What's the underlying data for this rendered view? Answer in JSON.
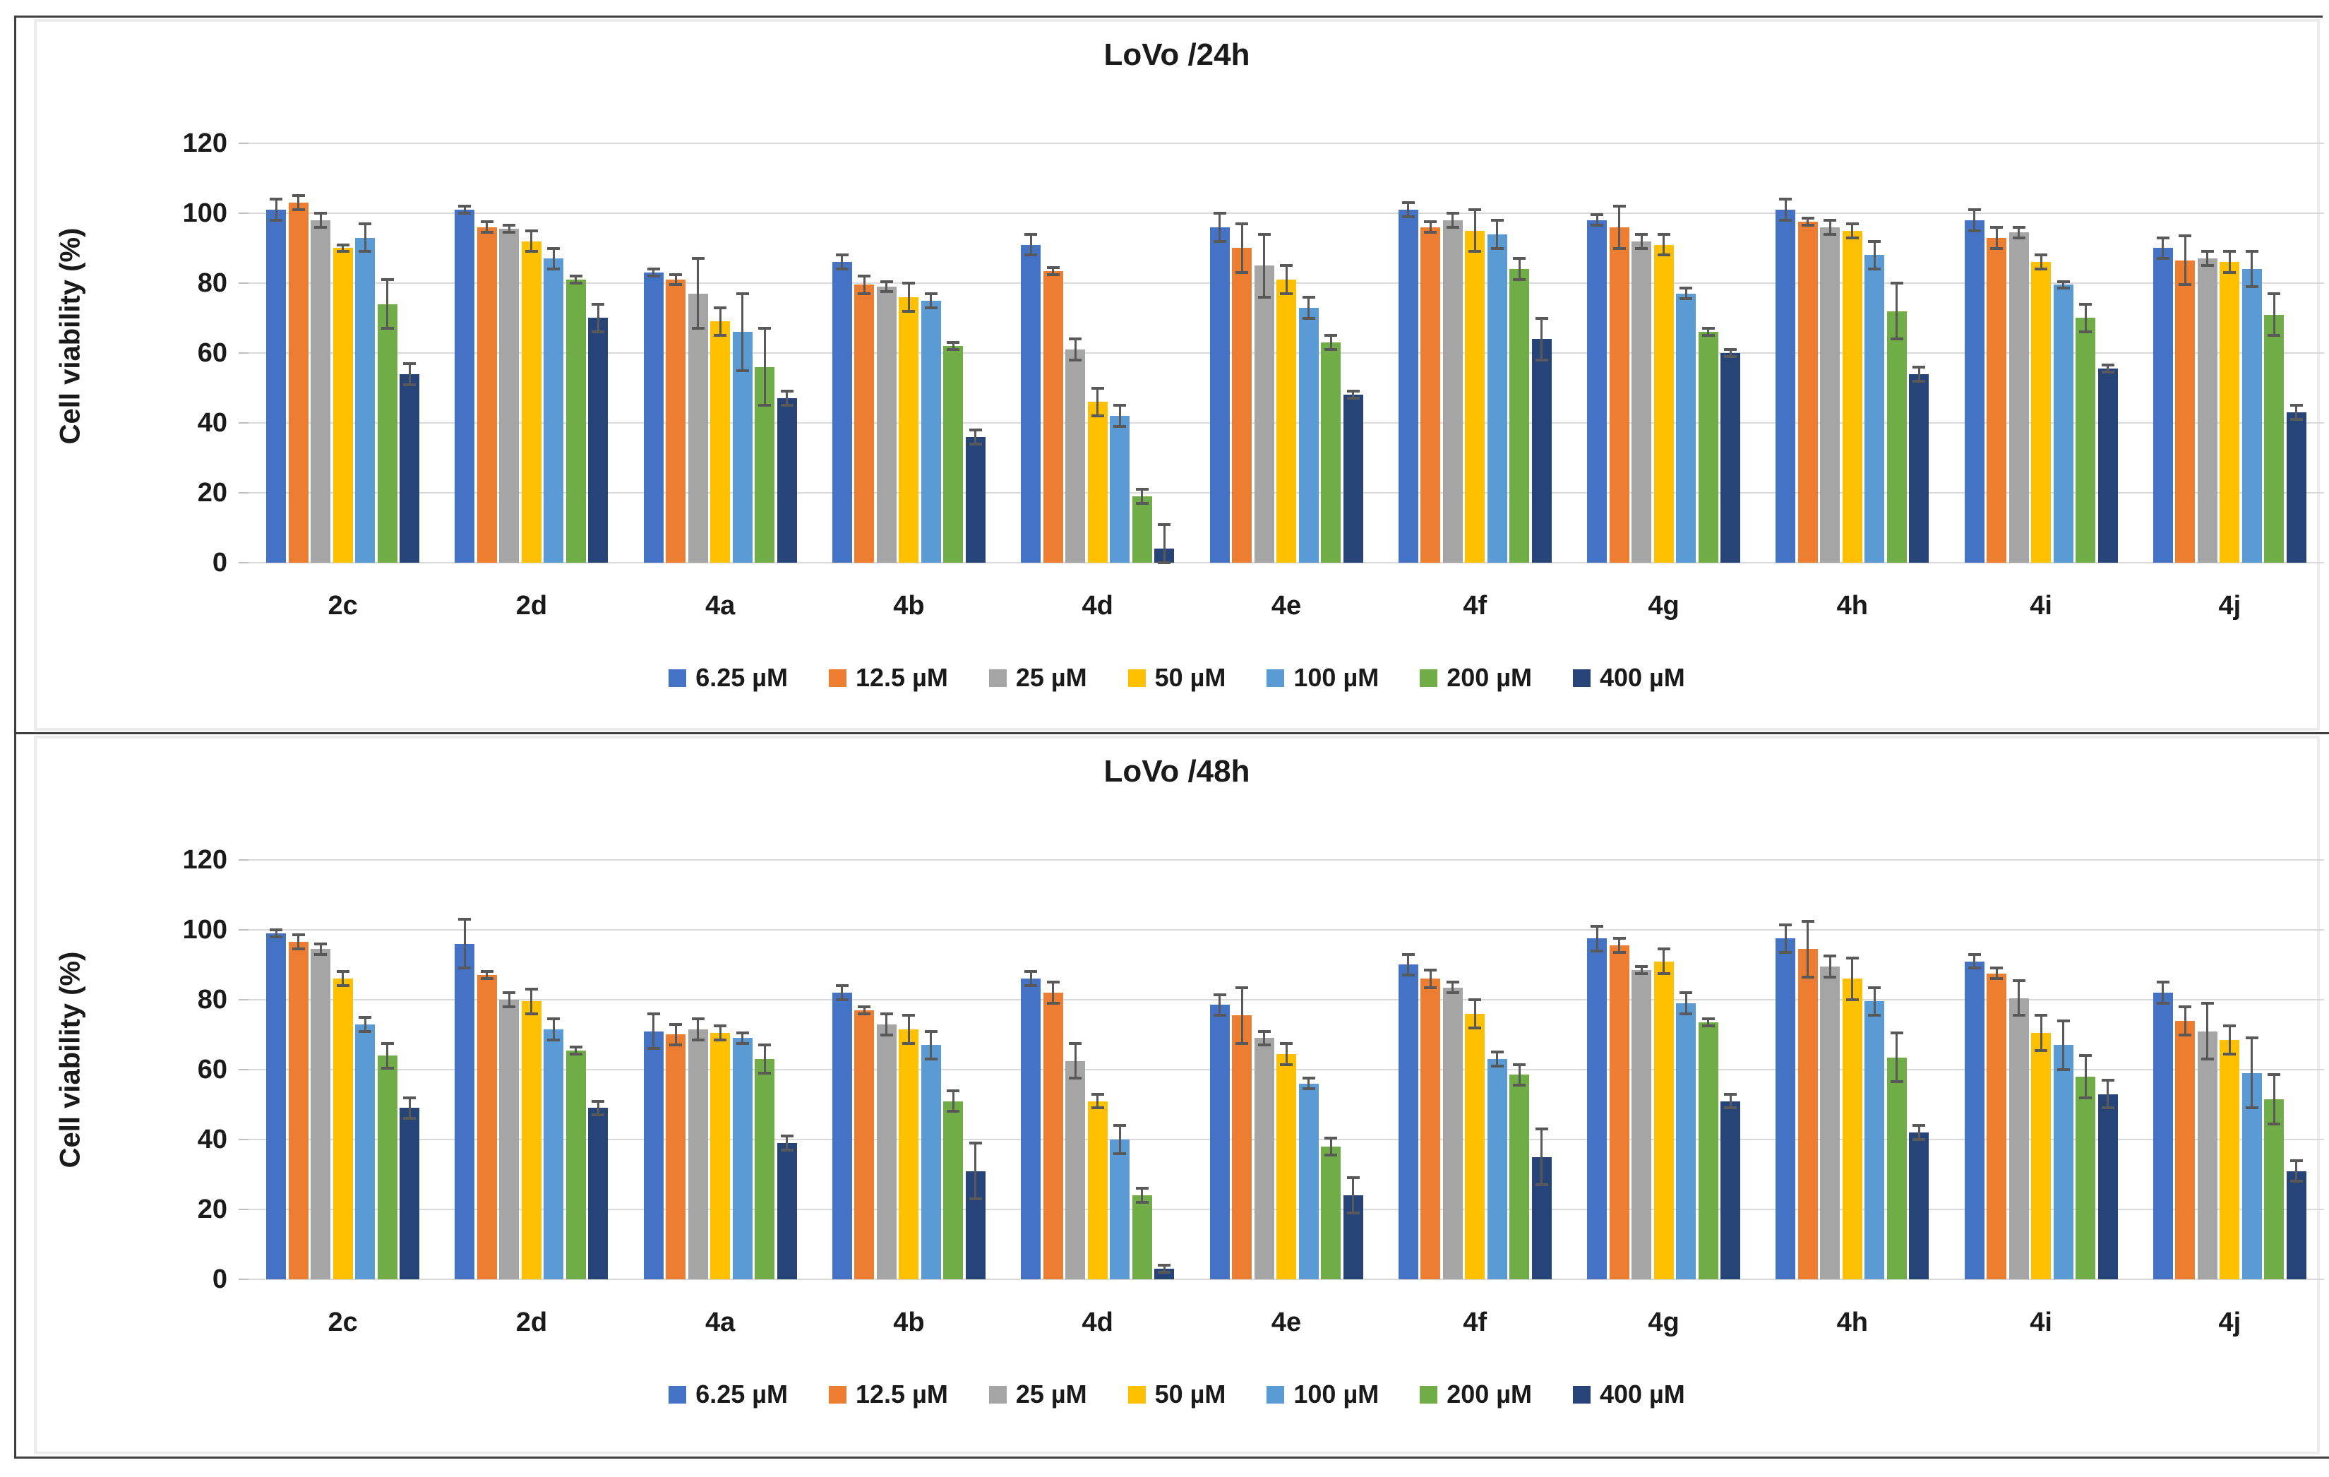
{
  "figure": {
    "background": "#ffffff",
    "outer_border_color": "#3f3f3f",
    "panel_border_color": "#ececec",
    "gridline_color": "#d9d9d9",
    "error_bar_color": "#595959",
    "text_color": "#1a1a1a"
  },
  "chart_data": [
    {
      "type": "bar",
      "title": "LoVo /24h",
      "xlabel": "",
      "ylabel": "Cell viability (%)",
      "ylim": [
        0,
        120
      ],
      "yticks": [
        0,
        20,
        40,
        60,
        80,
        100,
        120
      ],
      "grid": "horizontal",
      "legend_position": "bottom",
      "error_bars": true,
      "categories": [
        "2c",
        "2d",
        "4a",
        "4b",
        "4d",
        "4e",
        "4f",
        "4g",
        "4h",
        "4i",
        "4j"
      ],
      "series": [
        {
          "name": "6.25 µM",
          "color": "#4472C4",
          "values": [
            101,
            101,
            83,
            86,
            91,
            96,
            101,
            98,
            101,
            98,
            90
          ],
          "errors": [
            3,
            1,
            1,
            2,
            3,
            4,
            2,
            1.5,
            3,
            3,
            3
          ]
        },
        {
          "name": "12.5 µM",
          "color": "#ED7D31",
          "values": [
            103,
            96,
            81,
            79.5,
            83.5,
            90,
            96,
            96,
            97.5,
            93,
            86.5
          ],
          "errors": [
            2,
            1.5,
            1.5,
            2.5,
            1,
            7,
            1.5,
            6,
            1,
            3,
            7
          ]
        },
        {
          "name": "25 µM",
          "color": "#A5A5A5",
          "values": [
            98,
            95.5,
            77,
            79,
            61,
            85,
            98,
            92,
            96,
            94.5,
            87
          ],
          "errors": [
            2,
            1,
            10,
            1.5,
            3,
            9,
            2,
            2,
            2,
            1.5,
            2
          ]
        },
        {
          "name": "50 µM",
          "color": "#FFC000",
          "values": [
            90,
            92,
            69,
            76,
            46,
            81,
            95,
            91,
            95,
            86,
            86
          ],
          "errors": [
            1,
            3,
            4,
            4,
            4,
            4,
            6,
            3,
            2,
            2,
            3
          ]
        },
        {
          "name": "100 µM",
          "color": "#5B9BD5",
          "values": [
            93,
            87,
            66,
            75,
            42,
            73,
            94,
            77,
            88,
            79.5,
            84
          ],
          "errors": [
            4,
            3,
            11,
            2,
            3,
            3,
            4,
            1.5,
            4,
            1,
            5
          ]
        },
        {
          "name": "200 µM",
          "color": "#70AD47",
          "values": [
            74,
            81,
            56,
            62,
            19,
            63,
            84,
            66,
            72,
            70,
            71
          ],
          "errors": [
            7,
            1,
            11,
            1,
            2,
            2,
            3,
            1,
            8,
            4,
            6
          ]
        },
        {
          "name": "400 µM",
          "color": "#264478",
          "values": [
            54,
            70,
            47,
            36,
            4,
            48,
            64,
            60,
            54,
            55.5,
            43
          ],
          "errors": [
            3,
            4,
            2,
            2,
            7,
            1,
            6,
            1,
            2,
            1,
            2
          ]
        }
      ]
    },
    {
      "type": "bar",
      "title": "LoVo /48h",
      "xlabel": "",
      "ylabel": "Cell viability (%)",
      "ylim": [
        0,
        120
      ],
      "yticks": [
        0,
        20,
        40,
        60,
        80,
        100,
        120
      ],
      "grid": "horizontal",
      "legend_position": "bottom",
      "error_bars": true,
      "categories": [
        "2c",
        "2d",
        "4a",
        "4b",
        "4d",
        "4e",
        "4f",
        "4g",
        "4h",
        "4i",
        "4j"
      ],
      "series": [
        {
          "name": "6.25 µM",
          "color": "#4472C4",
          "values": [
            99,
            96,
            71,
            82,
            86,
            78.5,
            90,
            97.5,
            97.5,
            91,
            82
          ],
          "errors": [
            1,
            7,
            5,
            2,
            2,
            3,
            3,
            3.5,
            4,
            2,
            3
          ]
        },
        {
          "name": "12.5 µM",
          "color": "#ED7D31",
          "values": [
            96.5,
            87,
            70,
            77,
            82,
            75.5,
            86,
            95.5,
            94.5,
            87.5,
            74
          ],
          "errors": [
            2,
            1,
            3,
            1,
            3,
            8,
            2.5,
            2,
            8,
            1.5,
            4
          ]
        },
        {
          "name": "25 µM",
          "color": "#A5A5A5",
          "values": [
            94.5,
            80,
            71.5,
            73,
            62.5,
            69,
            83.5,
            88.5,
            89.5,
            80.5,
            71
          ],
          "errors": [
            1.5,
            2,
            3,
            3,
            5,
            2,
            1.5,
            1,
            3,
            5,
            8
          ]
        },
        {
          "name": "50 µM",
          "color": "#FFC000",
          "values": [
            86,
            79.5,
            70.5,
            71.5,
            51,
            64.5,
            76,
            91,
            86,
            70.5,
            68.5
          ],
          "errors": [
            2,
            3.5,
            2,
            4,
            2,
            3,
            4,
            3.5,
            6,
            5,
            4
          ]
        },
        {
          "name": "100 µM",
          "color": "#5B9BD5",
          "values": [
            73,
            71.5,
            69,
            67,
            40,
            56,
            63,
            79,
            79.5,
            67,
            59
          ],
          "errors": [
            2,
            3,
            1.5,
            4,
            4,
            1.5,
            2,
            3,
            4,
            7,
            10
          ]
        },
        {
          "name": "200 µM",
          "color": "#70AD47",
          "values": [
            64,
            65.5,
            63,
            51,
            24,
            38,
            58.5,
            73.5,
            63.5,
            58,
            51.5
          ],
          "errors": [
            3.5,
            1,
            4,
            3,
            2,
            2.5,
            3,
            1,
            7,
            6,
            7
          ]
        },
        {
          "name": "400 µM",
          "color": "#264478",
          "values": [
            49,
            49,
            39,
            31,
            3,
            24,
            35,
            51,
            42,
            53,
            31
          ],
          "errors": [
            3,
            2,
            2,
            8,
            1,
            5,
            8,
            2,
            2,
            4,
            3
          ]
        }
      ]
    }
  ]
}
